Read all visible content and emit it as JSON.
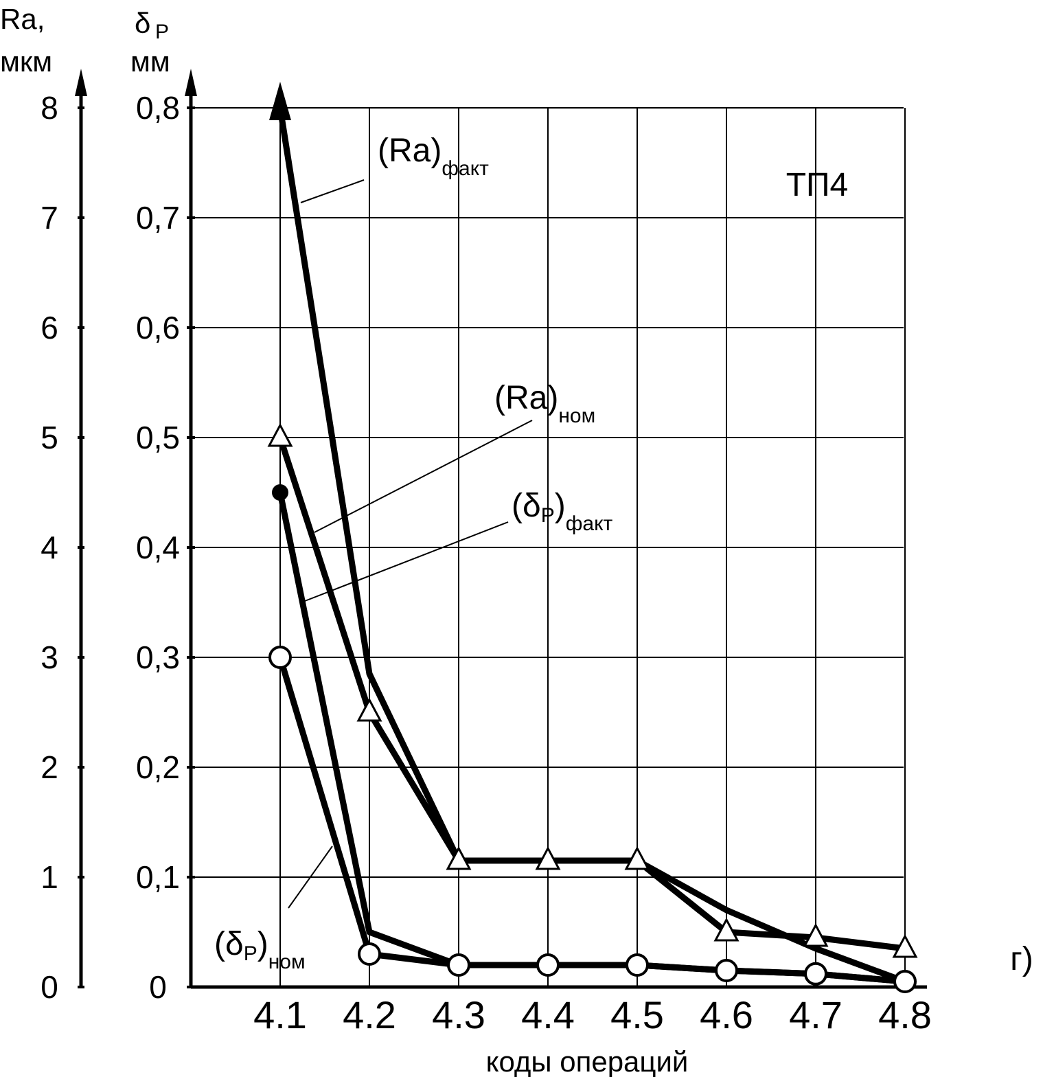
{
  "chart_data": {
    "type": "line",
    "badge": "ТП4",
    "panel_letter": "г)",
    "xlabel": "коды операций",
    "categories": [
      "4.1",
      "4.2",
      "4.3",
      "4.4",
      "4.5",
      "4.6",
      "4.7",
      "4.8"
    ],
    "y_left": {
      "title_main": "Ra,",
      "title_unit": "мкм",
      "ticks": [
        "0",
        "1",
        "2",
        "3",
        "4",
        "5",
        "6",
        "7",
        "8"
      ],
      "ylim": [
        0,
        8
      ]
    },
    "y_right": {
      "title_symbol": "δ",
      "title_subscript": "P",
      "title_unit": "мм",
      "ticks": [
        "0",
        "0,1",
        "0,2",
        "0,3",
        "0,4",
        "0,5",
        "0,6",
        "0,7",
        "0,8"
      ],
      "ylim": [
        0,
        0.8
      ]
    },
    "grid": true,
    "series": [
      {
        "name_main": "(Ra)",
        "name_sub": "факт",
        "marker": "arrow",
        "values": [
          8.0,
          2.85,
          1.15,
          1.15,
          1.15,
          0.7,
          0.35,
          0.05
        ]
      },
      {
        "name_main": "(Ra)",
        "name_sub": "ном",
        "marker": "triangle",
        "values": [
          5.0,
          2.5,
          1.15,
          1.15,
          1.15,
          0.5,
          0.45,
          0.35
        ]
      },
      {
        "name_main": "(δ",
        "name_mid": "P",
        "name_end": ")",
        "name_sub": "факт",
        "marker": "filled-circle",
        "values": [
          4.5,
          0.5,
          0.2,
          0.2,
          0.2,
          0.15,
          0.12,
          0.05
        ]
      },
      {
        "name_main": "(δ",
        "name_mid": "P",
        "name_end": ")",
        "name_sub": "ном",
        "marker": "open-circle",
        "values": [
          3.0,
          0.3,
          0.2,
          0.2,
          0.2,
          0.15,
          0.12,
          0.05
        ]
      }
    ]
  }
}
